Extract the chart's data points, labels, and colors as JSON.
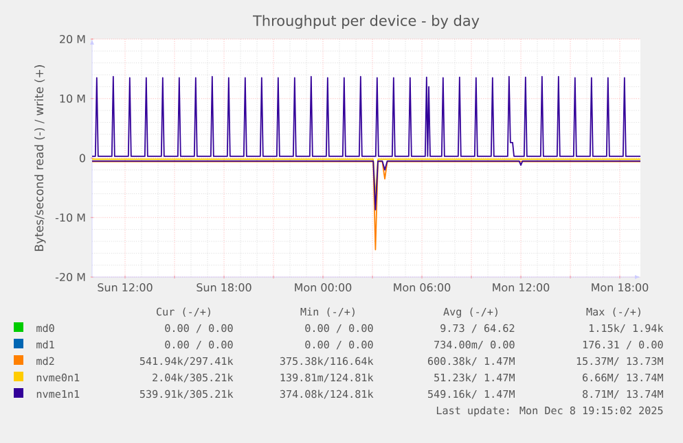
{
  "chart_data": {
    "type": "line",
    "title": "Throughput per device - by day",
    "ylabel": "Bytes/second read (-) / write (+)",
    "xlim": [
      "2025-12-07T10:00",
      "2025-12-08T19:15"
    ],
    "xticks": [
      {
        "value": "2025-12-07T12:00",
        "label": "Sun 12:00"
      },
      {
        "value": "2025-12-07T15:00",
        "label": null
      },
      {
        "value": "2025-12-07T18:00",
        "label": "Sun 18:00"
      },
      {
        "value": "2025-12-07T21:00",
        "label": null
      },
      {
        "value": "2025-12-08T00:00",
        "label": "Mon 00:00"
      },
      {
        "value": "2025-12-08T03:00",
        "label": null
      },
      {
        "value": "2025-12-08T06:00",
        "label": "Mon 06:00"
      },
      {
        "value": "2025-12-08T09:00",
        "label": null
      },
      {
        "value": "2025-12-08T12:00",
        "label": "Mon 12:00"
      },
      {
        "value": "2025-12-08T15:00",
        "label": null
      },
      {
        "value": "2025-12-08T18:00",
        "label": "Mon 18:00"
      }
    ],
    "ylim": [
      -20,
      20
    ],
    "yticks": [
      {
        "value": -20,
        "label": "-20 M"
      },
      {
        "value": -10,
        "label": "-10 M"
      },
      0,
      {
        "value": 10,
        "label": "10 M"
      },
      {
        "value": 20,
        "label": "20 M"
      }
    ],
    "grid": true,
    "legend": "bottom",
    "marker": "none",
    "line_style": "solid",
    "series": [
      {
        "name": "md0",
        "color": "#00cc00"
      },
      {
        "name": "md1",
        "color": "#0066b3"
      },
      {
        "name": "md2",
        "color": "#ff8000",
        "x": [
          "2025-12-07T10:00",
          "2025-12-08T03:03",
          "2025-12-08T03:11",
          "2025-12-08T03:20",
          "2025-12-08T03:36",
          "2025-12-08T03:45",
          "2025-12-08T03:54",
          "2025-12-08T19:15"
        ],
        "values": [
          -0.6,
          -0.6,
          -15.4,
          -0.6,
          -0.6,
          -3.5,
          -0.6,
          -0.6
        ]
      },
      {
        "name": "nvme0n1",
        "color": "#ffcc00",
        "x": [
          "2025-12-07T10:00",
          "2025-12-08T03:03",
          "2025-12-08T03:11",
          "2025-12-08T03:20",
          "2025-12-08T19:15"
        ],
        "values": [
          -0.2,
          -0.2,
          -6.7,
          -0.2,
          -0.2
        ]
      },
      {
        "name": "nvme1n1",
        "color": "#330099",
        "x": [
          "2025-12-07T10:00",
          "2025-12-07T10:12",
          "2025-12-07T10:17",
          "2025-12-07T10:22",
          "2025-12-07T11:12",
          "2025-12-07T11:17",
          "2025-12-07T11:22",
          "2025-12-07T12:12",
          "2025-12-07T12:17",
          "2025-12-07T12:22",
          "2025-12-07T13:12",
          "2025-12-07T13:17",
          "2025-12-07T13:22",
          "2025-12-07T14:12",
          "2025-12-07T14:17",
          "2025-12-07T14:22",
          "2025-12-07T15:12",
          "2025-12-07T15:17",
          "2025-12-07T15:22",
          "2025-12-07T16:12",
          "2025-12-07T16:17",
          "2025-12-07T16:22",
          "2025-12-07T17:12",
          "2025-12-07T17:17",
          "2025-12-07T17:22",
          "2025-12-07T18:12",
          "2025-12-07T18:17",
          "2025-12-07T18:22",
          "2025-12-07T19:12",
          "2025-12-07T19:17",
          "2025-12-07T19:22",
          "2025-12-07T20:12",
          "2025-12-07T20:17",
          "2025-12-07T20:22",
          "2025-12-07T21:12",
          "2025-12-07T21:17",
          "2025-12-07T21:22",
          "2025-12-07T22:12",
          "2025-12-07T22:17",
          "2025-12-07T22:22",
          "2025-12-07T23:12",
          "2025-12-07T23:17",
          "2025-12-07T23:22",
          "2025-12-08T00:12",
          "2025-12-08T00:17",
          "2025-12-08T00:22",
          "2025-12-08T01:12",
          "2025-12-08T01:17",
          "2025-12-08T01:22",
          "2025-12-08T02:12",
          "2025-12-08T02:17",
          "2025-12-08T02:22",
          "2025-12-08T03:12",
          "2025-12-08T03:17",
          "2025-12-08T03:22",
          "2025-12-08T04:12",
          "2025-12-08T04:17",
          "2025-12-08T04:22",
          "2025-12-08T05:12",
          "2025-12-08T05:17",
          "2025-12-08T05:22",
          "2025-12-08T06:12",
          "2025-12-08T06:17",
          "2025-12-08T06:21",
          "2025-12-08T06:25",
          "2025-12-08T06:30",
          "2025-12-08T07:12",
          "2025-12-08T07:17",
          "2025-12-08T07:22",
          "2025-12-08T08:12",
          "2025-12-08T08:17",
          "2025-12-08T08:22",
          "2025-12-08T09:12",
          "2025-12-08T09:17",
          "2025-12-08T09:22",
          "2025-12-08T10:12",
          "2025-12-08T10:17",
          "2025-12-08T10:22",
          "2025-12-08T11:12",
          "2025-12-08T11:17",
          "2025-12-08T11:22",
          "2025-12-08T11:30",
          "2025-12-08T11:35",
          "2025-12-08T12:12",
          "2025-12-08T12:17",
          "2025-12-08T12:22",
          "2025-12-08T13:12",
          "2025-12-08T13:17",
          "2025-12-08T13:22",
          "2025-12-08T14:12",
          "2025-12-08T14:17",
          "2025-12-08T14:22",
          "2025-12-08T15:12",
          "2025-12-08T15:17",
          "2025-12-08T15:22",
          "2025-12-08T16:12",
          "2025-12-08T16:17",
          "2025-12-08T16:22",
          "2025-12-08T17:12",
          "2025-12-08T17:17",
          "2025-12-08T17:22",
          "2025-12-08T18:12",
          "2025-12-08T18:17",
          "2025-12-08T18:22",
          "2025-12-08T19:15"
        ],
        "values": [
          0.3,
          0.3,
          13.5,
          0.3,
          0.3,
          13.7,
          0.3,
          0.3,
          13.5,
          0.3,
          0.3,
          13.5,
          0.3,
          0.3,
          13.5,
          0.3,
          0.3,
          13.5,
          0.3,
          0.3,
          13.5,
          0.3,
          0.3,
          13.7,
          0.3,
          0.3,
          13.5,
          0.3,
          0.3,
          13.5,
          0.3,
          0.3,
          13.5,
          0.3,
          0.3,
          13.5,
          0.3,
          0.3,
          13.5,
          0.3,
          0.3,
          13.7,
          0.3,
          0.3,
          13.5,
          0.3,
          0.3,
          13.5,
          0.3,
          0.3,
          13.7,
          0.3,
          0.3,
          13.5,
          0.3,
          0.3,
          13.5,
          0.3,
          0.3,
          13.5,
          0.3,
          0.3,
          13.6,
          0.3,
          12.0,
          0.3,
          0.3,
          13.5,
          0.3,
          0.3,
          13.6,
          0.3,
          0.3,
          13.5,
          0.3,
          0.3,
          13.5,
          0.3,
          0.3,
          13.7,
          2.6,
          2.6,
          0.3,
          0.3,
          13.6,
          0.3,
          0.3,
          13.7,
          0.3,
          0.3,
          13.7,
          0.3,
          0.3,
          13.5,
          0.3,
          0.3,
          13.5,
          0.3,
          0.3,
          13.5,
          0.3,
          0.3,
          13.5,
          0.3,
          0.3
        ]
      },
      {
        "color": "#330099",
        "x": [
          "2025-12-07T10:00",
          "2025-12-08T03:03",
          "2025-12-08T03:11",
          "2025-12-08T03:20",
          "2025-12-08T03:36",
          "2025-12-08T03:45",
          "2025-12-08T03:54",
          "2025-12-08T11:54",
          "2025-12-08T12:00",
          "2025-12-08T12:06",
          "2025-12-08T19:15"
        ],
        "values": [
          -0.5,
          -0.5,
          -8.7,
          -0.5,
          -0.5,
          -2.0,
          -0.5,
          -0.5,
          -1.2,
          -0.5,
          -0.5
        ]
      }
    ],
    "annotations": [
      "Cur (-/+)",
      "Min (-/+)",
      "Avg (-/+)",
      "Max (-/+)",
      "0.00 / 0.00",
      "0.00 / 0.00",
      "9.73 / 64.62",
      "1.15k/ 1.94k",
      "0.00 / 0.00",
      "0.00 / 0.00",
      "734.00m/ 0.00",
      "176.31 / 0.00",
      "541.94k/297.41k",
      "375.38k/116.64k",
      "600.38k/ 1.47M",
      "15.37M/ 13.73M",
      "2.04k/305.21k",
      "139.81m/124.81k",
      "51.23k/ 1.47M",
      "6.66M/ 13.74M",
      "539.91k/305.21k",
      "374.08k/124.81k",
      "549.16k/ 1.47M",
      "8.71M/ 13.74M",
      "Last update: Mon Dec 8 19:15:02 2025"
    ]
  }
}
